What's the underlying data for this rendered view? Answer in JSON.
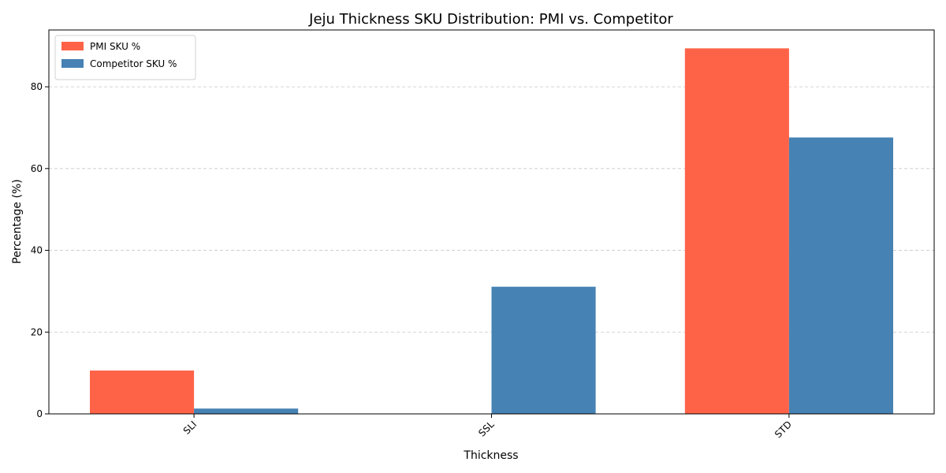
{
  "chart_data": {
    "type": "bar",
    "title": "Jeju Thickness SKU Distribution: PMI vs. Competitor",
    "xlabel": "Thickness",
    "ylabel": "Percentage (%)",
    "categories": [
      "SLI",
      "SSL",
      "STD"
    ],
    "series": [
      {
        "name": "PMI SKU %",
        "values": [
          10.6,
          0,
          89.4
        ],
        "color": "#FF6347"
      },
      {
        "name": "Competitor SKU %",
        "values": [
          1.3,
          31.1,
          67.6
        ],
        "color": "#4682B4"
      }
    ],
    "ylim": [
      0,
      93.9
    ],
    "yticks": [
      0,
      20,
      40,
      60,
      80
    ],
    "grid": "y-dashed",
    "legend_position": "top-left",
    "xtick_rotation": 45
  }
}
